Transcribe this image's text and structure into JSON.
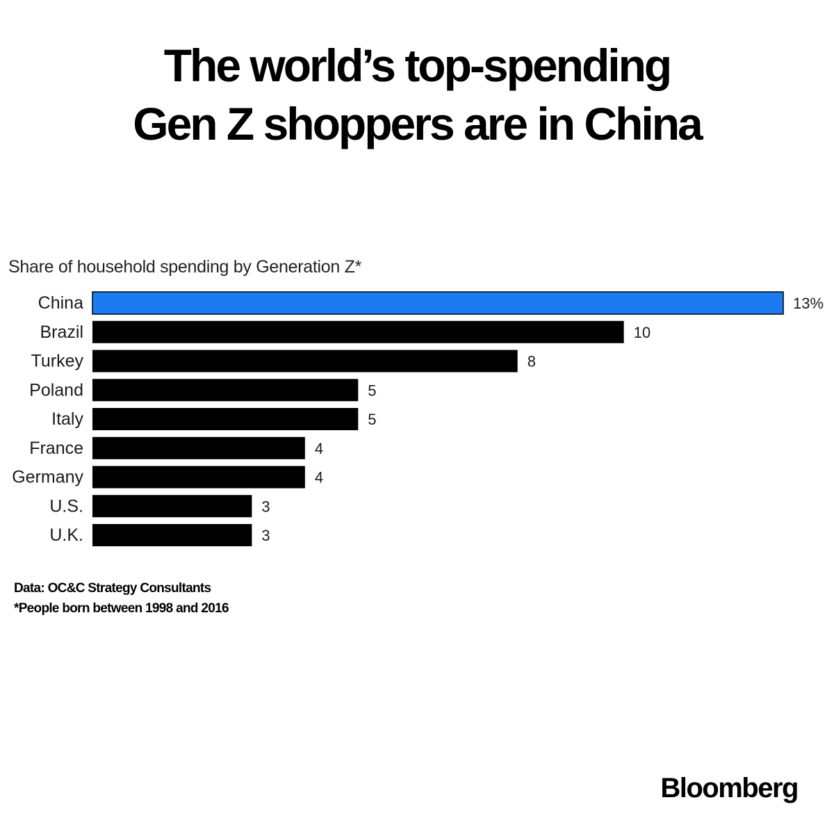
{
  "title_lines": [
    "The world’s top-spending",
    "Gen Z shoppers are in China"
  ],
  "source": "Data: OC&C Strategy Consultants",
  "footnote": "*People born between 1998 and 2016",
  "brand": "Bloomberg",
  "colors": {
    "highlight": "#1a7cf0",
    "bar": "#000000",
    "text": "#000000"
  },
  "chart_data": {
    "type": "bar",
    "orientation": "horizontal",
    "title": "The world’s top-spending Gen Z shoppers are in China",
    "subtitle": "Share of household spending by Generation Z*",
    "categories": [
      "China",
      "Brazil",
      "Turkey",
      "Poland",
      "Italy",
      "France",
      "Germany",
      "U.S.",
      "U.K."
    ],
    "values": [
      13,
      10,
      8,
      5,
      5,
      4,
      4,
      3,
      3
    ],
    "value_labels": [
      "13%",
      "10",
      "8",
      "5",
      "5",
      "4",
      "4",
      "3",
      "3"
    ],
    "highlight_category": "China",
    "xlabel": "",
    "ylabel": "",
    "xlim": [
      0,
      13
    ],
    "grid": false,
    "legend": "none"
  }
}
